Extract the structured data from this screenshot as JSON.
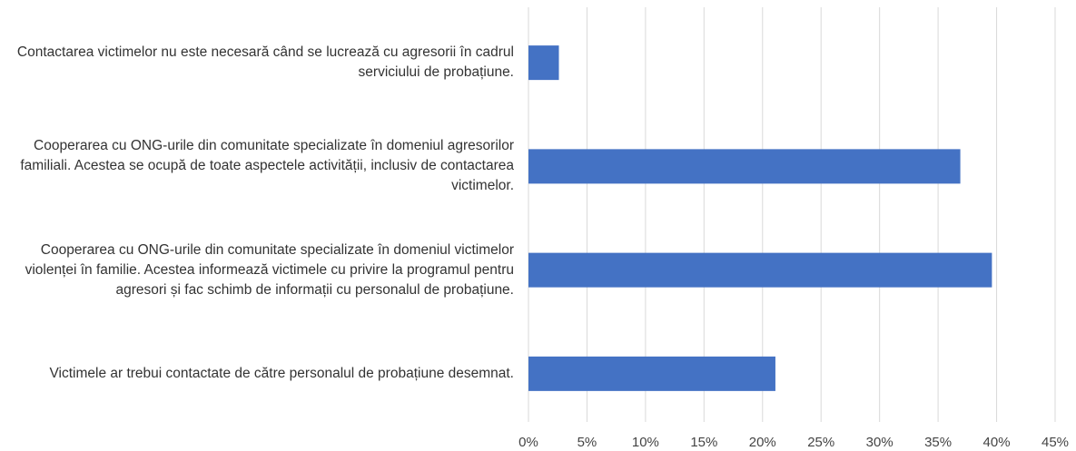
{
  "chart_data": {
    "type": "barh",
    "categories": [
      "Contactarea victimelor nu este necesară când se lucrează cu agresorii în cadrul serviciului de probațiune.",
      "Cooperarea cu ONG-urile din comunitate specializate în domeniul agresorilor familiali. Acestea se ocupă de toate aspectele activității, inclusiv de contactarea victimelor.",
      "Cooperarea cu ONG-urile din comunitate specializate în domeniul victimelor violenței în familie. Acestea informează victimele cu privire la programul pentru agresori și fac schimb de informații cu personalul de probațiune.",
      "Victimele ar trebui contactate de către personalul de probațiune desemnat."
    ],
    "values": [
      2.6,
      36.9,
      39.6,
      21.1
    ],
    "color": "#4472c4",
    "xlim": [
      0,
      45
    ],
    "xticks": [
      {
        "value": 0,
        "label": "0%"
      },
      {
        "value": 5,
        "label": "5%"
      },
      {
        "value": 10,
        "label": "10%"
      },
      {
        "value": 15,
        "label": "15%"
      },
      {
        "value": 20,
        "label": "20%"
      },
      {
        "value": 25,
        "label": "25%"
      },
      {
        "value": 30,
        "label": "30%"
      },
      {
        "value": 35,
        "label": "35%"
      },
      {
        "value": 40,
        "label": "40%"
      },
      {
        "value": 45,
        "label": "45%"
      }
    ],
    "grid": true
  }
}
